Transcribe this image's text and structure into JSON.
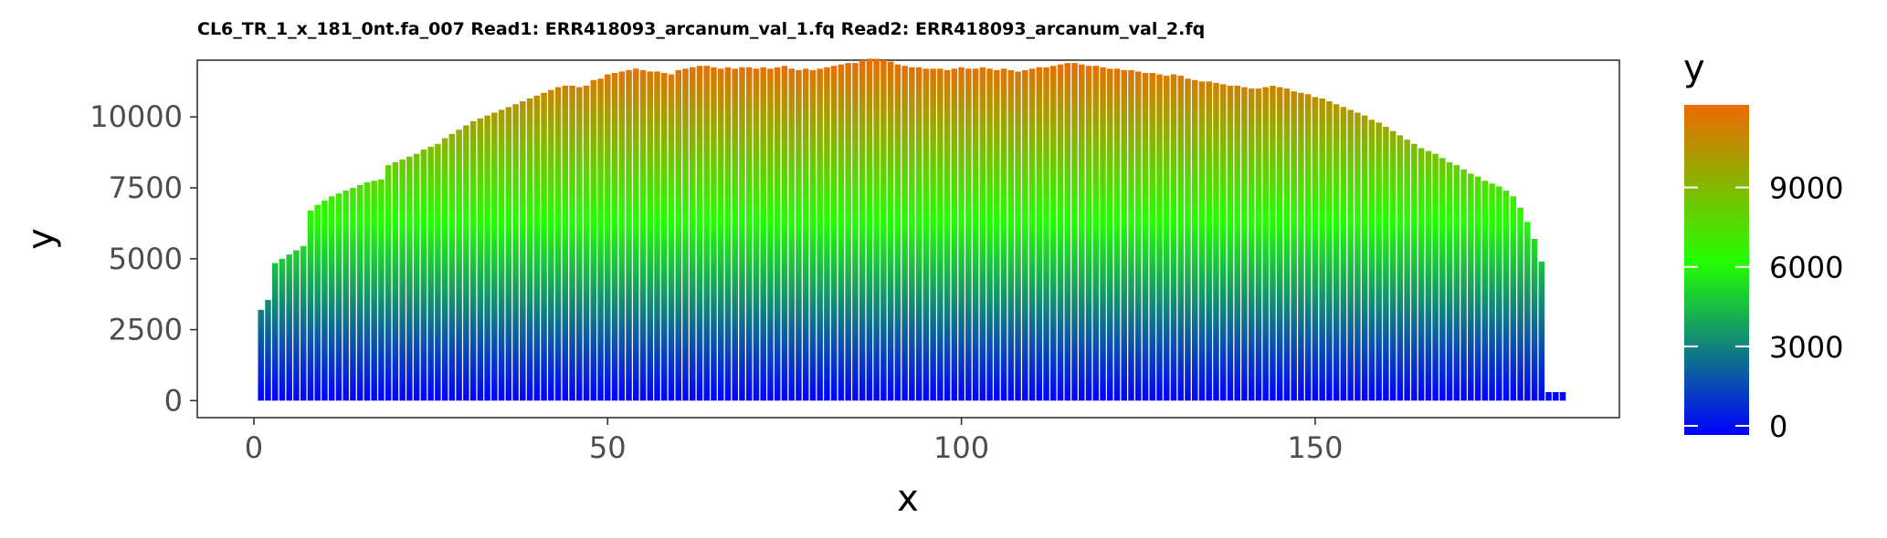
{
  "chart_data": {
    "type": "bar",
    "title": "CL6_TR_1_x_181_0nt.fa_007 Read1: ERR418093_arcanum_val_1.fq Read2: ERR418093_arcanum_val_2.fq",
    "xlabel": "x",
    "ylabel": "y",
    "xlim": [
      -8,
      193
    ],
    "ylim": [
      -600,
      12000
    ],
    "x_ticks": [
      0,
      50,
      100,
      150
    ],
    "y_ticks": [
      0,
      2500,
      5000,
      7500,
      10000
    ],
    "x_start": 1,
    "values": [
      3200,
      3550,
      4850,
      5000,
      5150,
      5300,
      5450,
      6700,
      6900,
      7050,
      7200,
      7300,
      7400,
      7500,
      7600,
      7700,
      7750,
      7800,
      8300,
      8400,
      8500,
      8600,
      8700,
      8850,
      8950,
      9050,
      9250,
      9400,
      9550,
      9700,
      9850,
      9950,
      10050,
      10150,
      10250,
      10350,
      10450,
      10550,
      10650,
      10750,
      10850,
      10950,
      11050,
      11100,
      11100,
      11050,
      11100,
      11300,
      11350,
      11500,
      11550,
      11600,
      11650,
      11700,
      11650,
      11600,
      11600,
      11550,
      11500,
      11650,
      11700,
      11750,
      11800,
      11800,
      11750,
      11700,
      11750,
      11700,
      11750,
      11750,
      11700,
      11750,
      11700,
      11750,
      11800,
      11700,
      11650,
      11700,
      11650,
      11700,
      11750,
      11800,
      11850,
      11900,
      11900,
      12000,
      12050,
      12050,
      12000,
      11950,
      11850,
      11800,
      11750,
      11750,
      11700,
      11700,
      11700,
      11650,
      11700,
      11750,
      11700,
      11700,
      11750,
      11700,
      11650,
      11700,
      11650,
      11600,
      11650,
      11700,
      11750,
      11750,
      11800,
      11850,
      11900,
      11900,
      11850,
      11800,
      11800,
      11750,
      11700,
      11700,
      11650,
      11650,
      11600,
      11550,
      11550,
      11500,
      11450,
      11500,
      11450,
      11350,
      11300,
      11250,
      11250,
      11200,
      11150,
      11100,
      11100,
      11050,
      11000,
      11000,
      11050,
      11100,
      11050,
      11000,
      10900,
      10850,
      10800,
      10700,
      10650,
      10550,
      10450,
      10350,
      10250,
      10150,
      10050,
      9900,
      9800,
      9650,
      9500,
      9350,
      9200,
      9050,
      8900,
      8800,
      8700,
      8550,
      8400,
      8300,
      8150,
      8000,
      7900,
      7750,
      7650,
      7550,
      7400,
      7200,
      6800,
      6300,
      5700,
      4900,
      300,
      300,
      300
    ],
    "colorscale": {
      "name": "y",
      "stops": [
        {
          "value": 0,
          "color": "#0000ff"
        },
        {
          "value": 6300,
          "color": "#22ff00"
        },
        {
          "value": 12050,
          "color": "#ee6a00"
        }
      ],
      "ticks": [
        0,
        3000,
        6000,
        9000
      ]
    },
    "legend": "right",
    "grid": false
  }
}
